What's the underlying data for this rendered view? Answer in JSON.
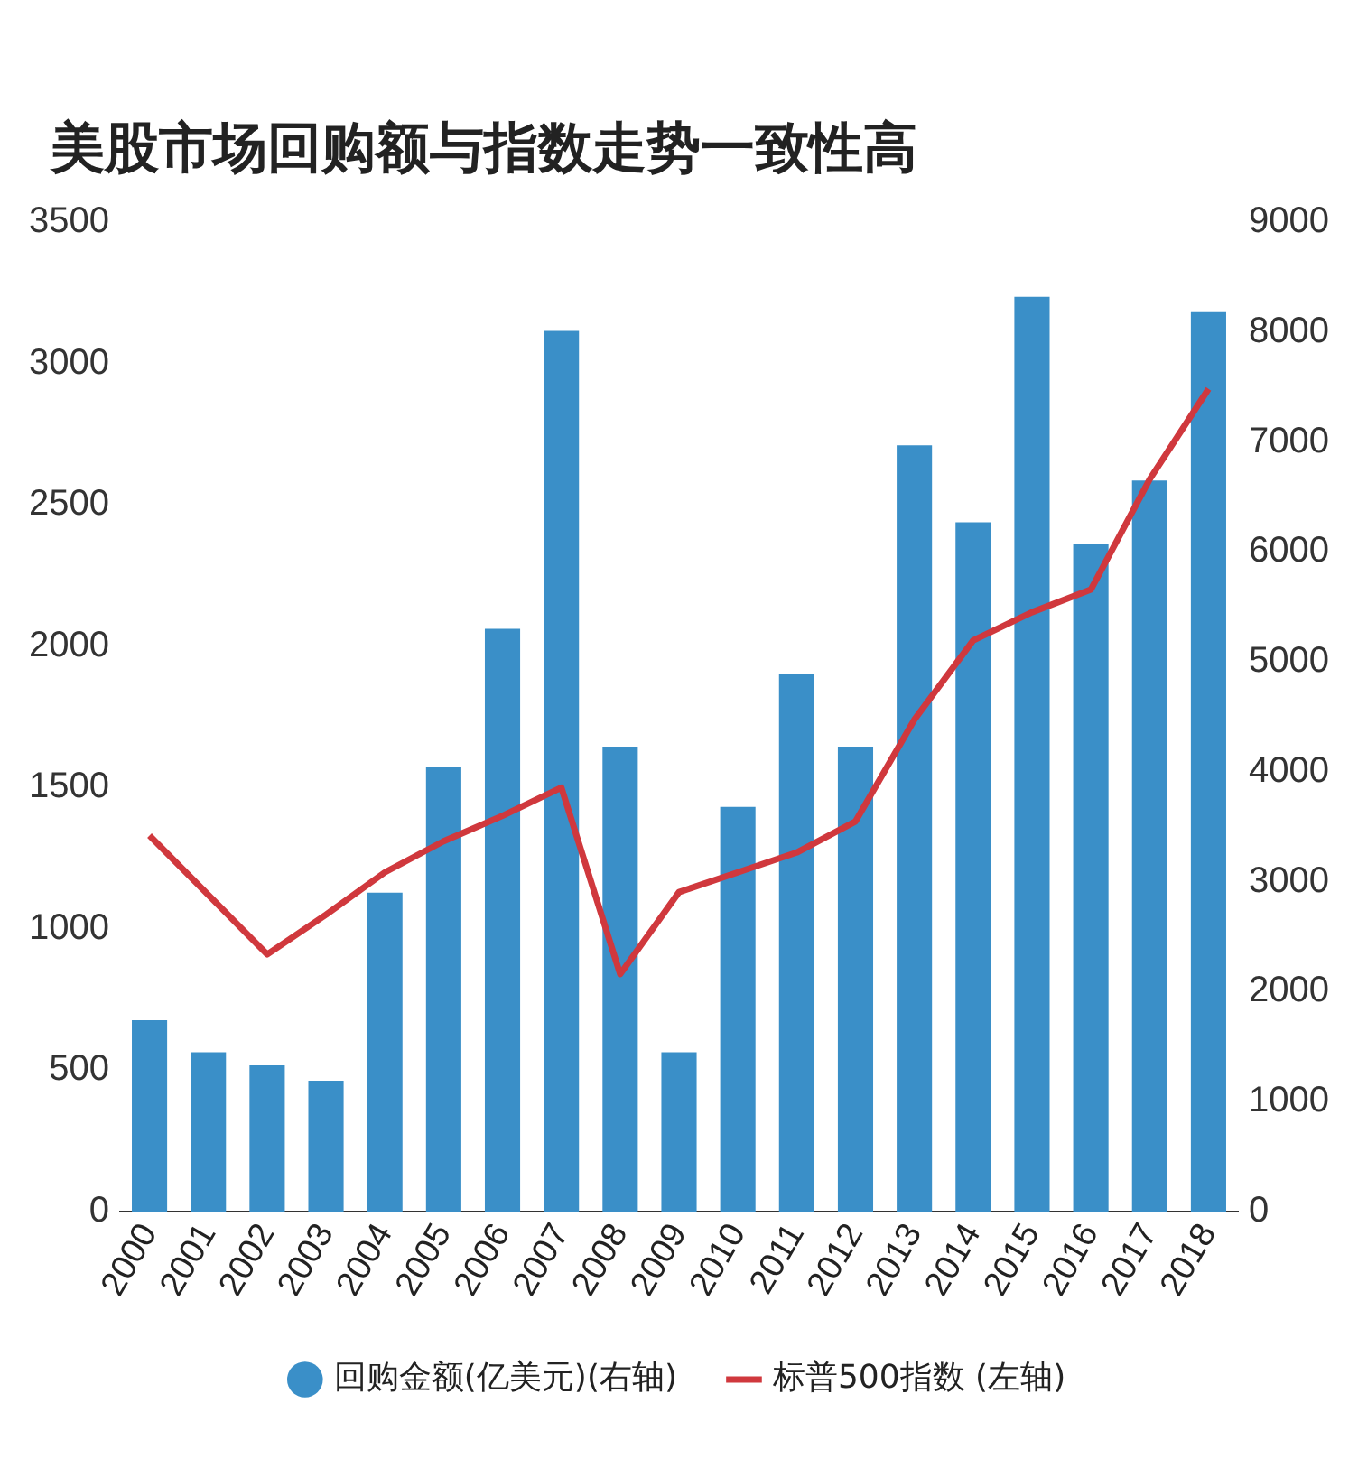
{
  "chart_data": {
    "type": "bar",
    "title": "美股市场回购额与指数走势一致性高",
    "categories": [
      "2000",
      "2001",
      "2002",
      "2003",
      "2004",
      "2005",
      "2006",
      "2007",
      "2008",
      "2009",
      "2010",
      "2011",
      "2012",
      "2013",
      "2014",
      "2015",
      "2016",
      "2017",
      "2018"
    ],
    "series": [
      {
        "name": "回购金额(亿美元)(右轴)",
        "axis": "y2",
        "color": "#3a8fc8",
        "values": [
          1740,
          1450,
          1330,
          1190,
          2900,
          4040,
          5300,
          8010,
          4230,
          1450,
          3680,
          4890,
          4230,
          6970,
          6270,
          8320,
          6070,
          6650,
          8180
        ]
      },
      {
        "name": "标普500指数 (左轴)",
        "type": "line",
        "axis": "y",
        "color": "#d0383d",
        "values": [
          1330,
          1120,
          910,
          1050,
          1200,
          1310,
          1400,
          1500,
          840,
          1130,
          1200,
          1270,
          1380,
          1740,
          2020,
          2120,
          2200,
          2590,
          2910
        ]
      }
    ],
    "ylim": [
      0,
      3500
    ],
    "yticks": [
      0,
      500,
      1000,
      1500,
      2000,
      2500,
      3000,
      3500
    ],
    "y2lim": [
      0,
      9000
    ],
    "y2ticks": [
      0,
      1000,
      2000,
      3000,
      4000,
      5000,
      6000,
      7000,
      8000,
      9000
    ],
    "grid": false,
    "legend": "bottom",
    "marker": "none"
  }
}
